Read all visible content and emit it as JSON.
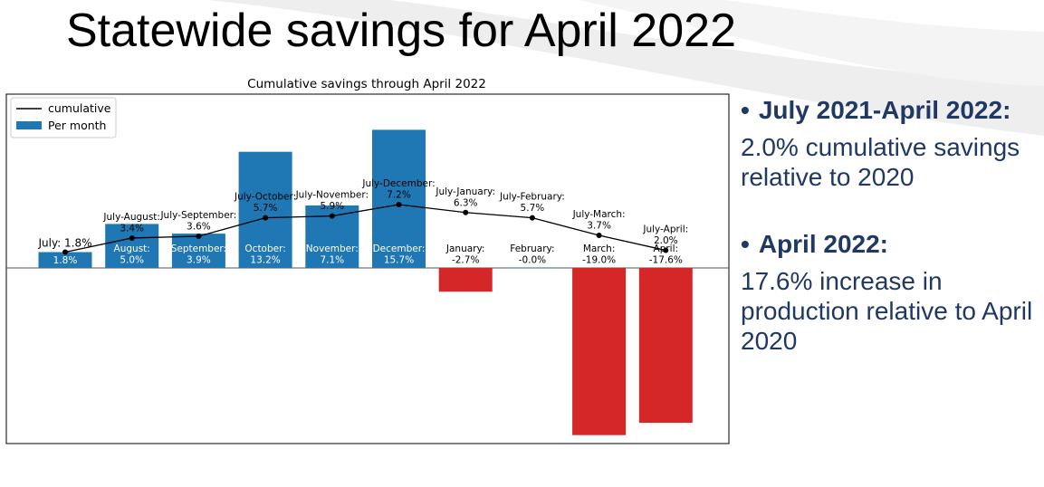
{
  "slide": {
    "title": "Statewide savings for April 2022"
  },
  "bullets": [
    {
      "heading": "July 2021-April 2022:",
      "text": "2.0% cumulative savings relative to 2020"
    },
    {
      "heading": "April 2022:",
      "text": "17.6% increase in production relative to April 2020"
    }
  ],
  "colors": {
    "bar_positive": "#1f77b4",
    "bar_negative": "#d62728",
    "line": "#000000",
    "bullet_text": "#1f3864"
  },
  "chart_data": {
    "type": "bar",
    "title": "Cumulative savings through April 2022",
    "legend": {
      "position": "top-left",
      "entries": [
        "cumulative",
        "Per month"
      ]
    },
    "categories": [
      "July",
      "August",
      "September",
      "October",
      "November",
      "December",
      "January",
      "February",
      "March",
      "April"
    ],
    "series": [
      {
        "name": "Per month",
        "kind": "bar",
        "values": [
          1.8,
          5.0,
          3.9,
          13.2,
          7.1,
          15.7,
          -2.7,
          -0.0,
          -19.0,
          -17.6
        ],
        "labels": [
          "1.8%",
          "August:\n5.0%",
          "September:\n3.9%",
          "October:\n13.2%",
          "November:\n7.1%",
          "December:\n15.7%",
          "January:\n-2.7%",
          "February:\n-0.0%",
          "March:\n-19.0%",
          "April:\n-17.6%"
        ]
      },
      {
        "name": "cumulative",
        "kind": "line",
        "values": [
          1.8,
          3.4,
          3.6,
          5.7,
          5.9,
          7.2,
          6.3,
          5.7,
          3.7,
          2.0
        ],
        "labels": [
          "July: 1.8%",
          "July-August:\n3.4%",
          "July-September:\n3.6%",
          "July-October:\n5.7%",
          "July-November:\n5.9%",
          "July-December:\n7.2%",
          "July-January:\n6.3%",
          "July-February:\n5.7%",
          "July-March:\n3.7%",
          "July-April:\n2.0%"
        ]
      }
    ],
    "ylim": [
      -20,
      16.8
    ],
    "xlabel": "",
    "ylabel": "",
    "grid": false,
    "axis_ticks": false
  }
}
